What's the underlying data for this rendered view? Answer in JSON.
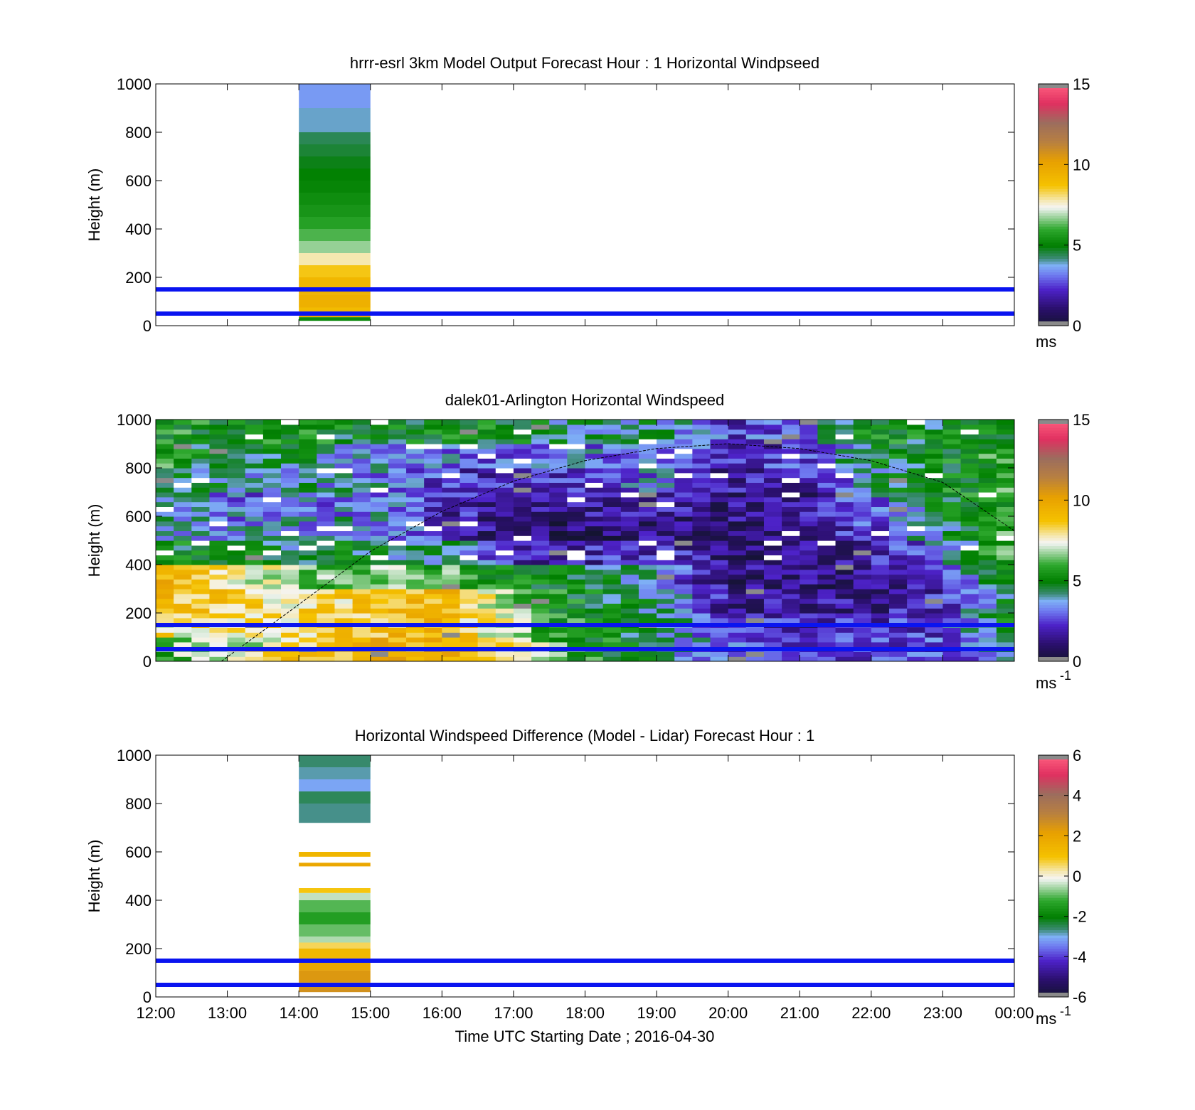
{
  "figure": {
    "x_axis": {
      "label": "Time UTC  Starting Date ; 2016-04-30",
      "ticks": [
        "12:00",
        "13:00",
        "14:00",
        "15:00",
        "16:00",
        "17:00",
        "18:00",
        "19:00",
        "20:00",
        "21:00",
        "22:00",
        "23:00",
        "00:00"
      ]
    }
  },
  "chart_data": [
    {
      "type": "heatmap",
      "title": "hrrr-esrl 3km Model Output   Forecast Hour : 1 Horizontal Windpseed",
      "ylabel": "Height (m)",
      "xlabel": "",
      "xlim": [
        "12:00",
        "00:00"
      ],
      "ylim": [
        0,
        1000
      ],
      "y_ticks": [
        "0",
        "200",
        "400",
        "600",
        "800",
        "1000"
      ],
      "colorbar": {
        "range": [
          0,
          15
        ],
        "ticks": [
          "0",
          "5",
          "10",
          "15"
        ],
        "unit": "ms",
        "unit_sup": ""
      },
      "reference_lines_m": [
        50,
        150
      ],
      "data_columns": [
        {
          "start": "14:00",
          "end": "15:00",
          "bins": [
            {
              "from": 20,
              "to": 35,
              "value": 5.2
            },
            {
              "from": 35,
              "to": 60,
              "value": 9.8
            },
            {
              "from": 60,
              "to": 75,
              "value": 9.0
            },
            {
              "from": 75,
              "to": 130,
              "value": 9.5
            },
            {
              "from": 130,
              "to": 150,
              "value": 9.4
            },
            {
              "from": 150,
              "to": 200,
              "value": 9.2
            },
            {
              "from": 200,
              "to": 250,
              "value": 8.6
            },
            {
              "from": 250,
              "to": 300,
              "value": 7.8
            },
            {
              "from": 300,
              "to": 350,
              "value": 6.7
            },
            {
              "from": 350,
              "to": 400,
              "value": 6.2
            },
            {
              "from": 400,
              "to": 450,
              "value": 5.8
            },
            {
              "from": 450,
              "to": 500,
              "value": 5.5
            },
            {
              "from": 500,
              "to": 550,
              "value": 5.3
            },
            {
              "from": 550,
              "to": 600,
              "value": 5.1
            },
            {
              "from": 600,
              "to": 650,
              "value": 5.0
            },
            {
              "from": 650,
              "to": 700,
              "value": 4.8
            },
            {
              "from": 700,
              "to": 750,
              "value": 4.6
            },
            {
              "from": 750,
              "to": 800,
              "value": 4.4
            },
            {
              "from": 800,
              "to": 900,
              "value": 3.9
            },
            {
              "from": 900,
              "to": 1000,
              "value": 3.5
            }
          ]
        }
      ]
    },
    {
      "type": "heatmap",
      "title": "dalek01-Arlington  Horizontal Windspeed",
      "ylabel": "Height (m)",
      "xlabel": "",
      "xlim": [
        "12:00",
        "00:00"
      ],
      "ylim": [
        0,
        1000
      ],
      "y_ticks": [
        "0",
        "200",
        "400",
        "600",
        "800",
        "1000"
      ],
      "colorbar": {
        "range": [
          0,
          15
        ],
        "ticks": [
          "0",
          "5",
          "10",
          "15"
        ],
        "unit": "ms",
        "unit_sup": "-1"
      },
      "reference_lines_m": [
        50,
        150
      ],
      "boundary_layer_curve": {
        "time": [
          "12:55",
          "14:00",
          "15:00",
          "16:00",
          "17:00",
          "18:00",
          "19:00",
          "20:00",
          "21:00",
          "22:00",
          "23:00",
          "00:00"
        ],
        "height_m": [
          0,
          235,
          455,
          620,
          745,
          830,
          880,
          900,
          880,
          830,
          740,
          540
        ]
      },
      "row_profile": [
        {
          "from": 0,
          "to": 100,
          "values": [
            6.2,
            6.5,
            8.6,
            9.2,
            9.6,
            7.4,
            5.4,
            4.5,
            2.7,
            2.4,
            2.6,
            2.5,
            3.8
          ]
        },
        {
          "from": 100,
          "to": 200,
          "values": [
            8.0,
            8.0,
            8.4,
            8.8,
            9.3,
            6.9,
            5.2,
            4.6,
            2.3,
            2.0,
            2.2,
            2.6,
            5.3
          ]
        },
        {
          "from": 200,
          "to": 300,
          "values": [
            9.0,
            8.6,
            8.0,
            8.6,
            9.1,
            6.7,
            5.0,
            4.4,
            1.7,
            1.4,
            1.6,
            2.2,
            5.0
          ]
        },
        {
          "from": 300,
          "to": 400,
          "values": [
            9.2,
            8.1,
            6.5,
            6.5,
            6.0,
            5.4,
            4.8,
            3.6,
            1.3,
            1.2,
            1.4,
            2.4,
            5.4
          ]
        },
        {
          "from": 400,
          "to": 500,
          "values": [
            5.2,
            4.8,
            4.5,
            4.6,
            4.2,
            1.9,
            2.0,
            2.3,
            1.2,
            1.1,
            1.9,
            3.2,
            6.4
          ]
        },
        {
          "from": 500,
          "to": 600,
          "values": [
            4.3,
            3.3,
            3.6,
            3.8,
            2.1,
            1.1,
            1.0,
            1.3,
            1.3,
            1.2,
            2.6,
            4.2,
            6.0
          ]
        },
        {
          "from": 600,
          "to": 700,
          "values": [
            4.4,
            3.1,
            3.1,
            3.6,
            2.0,
            1.7,
            1.4,
            2.0,
            1.3,
            1.3,
            3.1,
            4.6,
            5.9
          ]
        },
        {
          "from": 700,
          "to": 800,
          "values": [
            5.2,
            4.0,
            3.8,
            3.6,
            2.4,
            2.0,
            2.4,
            3.2,
            1.7,
            2.0,
            3.9,
            5.0,
            6.2
          ]
        },
        {
          "from": 800,
          "to": 900,
          "values": [
            5.6,
            4.6,
            4.6,
            3.4,
            3.0,
            2.9,
            3.1,
            3.6,
            2.1,
            2.4,
            4.5,
            5.1,
            5.9
          ]
        },
        {
          "from": 900,
          "to": 1000,
          "values": [
            5.6,
            5.2,
            5.4,
            4.6,
            5.4,
            4.8,
            4.1,
            4.4,
            2.4,
            3.0,
            5.3,
            4.8,
            5.6
          ]
        }
      ],
      "row_profile_times": [
        "12:00",
        "13:00",
        "14:00",
        "15:00",
        "16:00",
        "17:00",
        "18:00",
        "19:00",
        "20:00",
        "21:00",
        "22:00",
        "23:00",
        "00:00"
      ]
    },
    {
      "type": "heatmap",
      "title": "Horizontal Windspeed Difference (Model - Lidar) Forecast Hour : 1",
      "ylabel": "Height (m)",
      "xlabel": "Time UTC  Starting Date ; 2016-04-30",
      "xlim": [
        "12:00",
        "00:00"
      ],
      "ylim": [
        0,
        1000
      ],
      "y_ticks": [
        "0",
        "200",
        "400",
        "600",
        "800",
        "1000"
      ],
      "colorbar": {
        "range": [
          -6,
          6
        ],
        "ticks": [
          "-6",
          "-4",
          "-2",
          "0",
          "2",
          "4",
          "6"
        ],
        "unit": "ms",
        "unit_sup": "-1"
      },
      "reference_lines_m": [
        50,
        150
      ],
      "data_columns": [
        {
          "start": "14:00",
          "end": "15:00",
          "bins": [
            {
              "from": 20,
              "to": 60,
              "value": 2.6
            },
            {
              "from": 60,
              "to": 110,
              "value": 2.4
            },
            {
              "from": 110,
              "to": 160,
              "value": 1.9
            },
            {
              "from": 160,
              "to": 200,
              "value": 1.3
            },
            {
              "from": 200,
              "to": 225,
              "value": 0.6
            },
            {
              "from": 225,
              "to": 250,
              "value": -0.5
            },
            {
              "from": 250,
              "to": 300,
              "value": -0.9
            },
            {
              "from": 300,
              "to": 350,
              "value": -1.4
            },
            {
              "from": 350,
              "to": 400,
              "value": -1.0
            },
            {
              "from": 400,
              "to": 430,
              "value": -0.4
            },
            {
              "from": 430,
              "to": 450,
              "value": 0.9
            },
            {
              "from": 540,
              "to": 555,
              "value": 1.9
            },
            {
              "from": 580,
              "to": 600,
              "value": 1.4
            },
            {
              "from": 720,
              "to": 800,
              "value": -2.7
            },
            {
              "from": 800,
              "to": 850,
              "value": -2.5
            },
            {
              "from": 850,
              "to": 900,
              "value": -3.1
            },
            {
              "from": 900,
              "to": 950,
              "value": -2.8
            },
            {
              "from": 950,
              "to": 1000,
              "value": -2.6
            }
          ]
        }
      ]
    }
  ]
}
